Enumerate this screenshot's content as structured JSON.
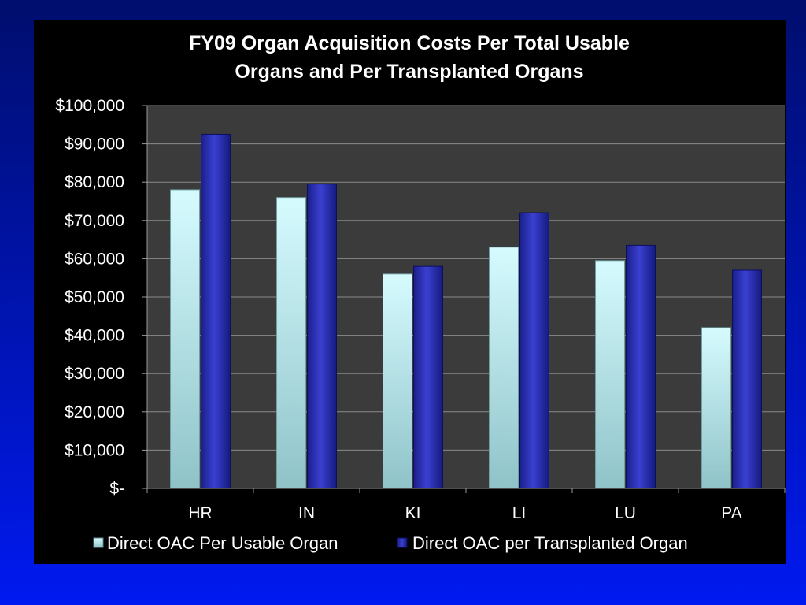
{
  "chart_data": {
    "type": "bar",
    "title_lines": [
      "FY09 Organ Acquisition Costs Per Total Usable",
      "Organs and Per Transplanted Organs"
    ],
    "categories": [
      "HR",
      "IN",
      "KI",
      "LI",
      "LU",
      "PA"
    ],
    "series": [
      {
        "name": "Direct OAC Per Usable Organ",
        "color": "#bfeff2",
        "values": [
          78000,
          76000,
          56000,
          63000,
          59500,
          42000
        ]
      },
      {
        "name": "Direct OAC per Transplanted Organ",
        "color": "#2a2fb8",
        "values": [
          92500,
          79500,
          58000,
          72000,
          63500,
          57000
        ]
      }
    ],
    "ylim": [
      0,
      100000
    ],
    "y_ticks": [
      {
        "value": 0,
        "label": "$-"
      },
      {
        "value": 10000,
        "label": "$10,000"
      },
      {
        "value": 20000,
        "label": "$20,000"
      },
      {
        "value": 30000,
        "label": "$30,000"
      },
      {
        "value": 40000,
        "label": "$40,000"
      },
      {
        "value": 50000,
        "label": "$50,000"
      },
      {
        "value": 60000,
        "label": "$60,000"
      },
      {
        "value": 70000,
        "label": "$70,000"
      },
      {
        "value": 80000,
        "label": "$80,000"
      },
      {
        "value": 90000,
        "label": "$90,000"
      },
      {
        "value": 100000,
        "label": "$100,000"
      }
    ],
    "grid": true,
    "legend_position": "bottom",
    "xlabel": "",
    "ylabel": ""
  }
}
